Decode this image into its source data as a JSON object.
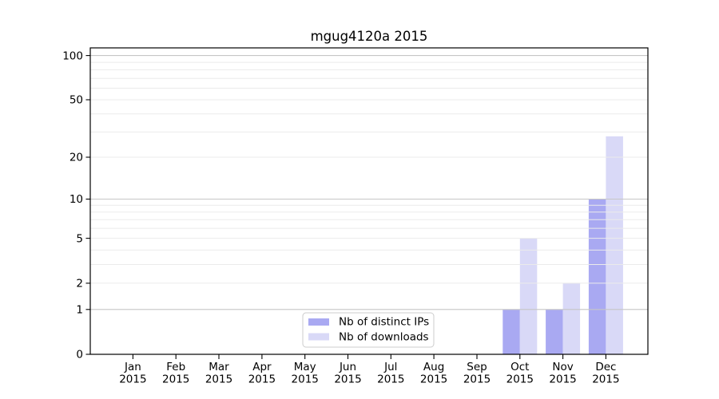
{
  "chart_data": {
    "type": "bar",
    "title": "mgug4120a 2015",
    "categories": [
      "Jan",
      "Feb",
      "Mar",
      "Apr",
      "May",
      "Jun",
      "Jul",
      "Aug",
      "Sep",
      "Oct",
      "Nov",
      "Dec"
    ],
    "x_year_line": "2015",
    "series": [
      {
        "name": "Nb of distinct IPs",
        "color": "#a9a9f2",
        "values": [
          0,
          0,
          0,
          0,
          0,
          0,
          0,
          0,
          0,
          1,
          1,
          10
        ]
      },
      {
        "name": "Nb of downloads",
        "color": "#d9d9f7",
        "values": [
          0,
          0,
          0,
          0,
          0,
          0,
          0,
          0,
          0,
          5,
          2,
          28
        ]
      }
    ],
    "xlabel": "",
    "ylabel": "",
    "y_scale": "log10(value+1)",
    "y_ticks": [
      0,
      1,
      2,
      5,
      10,
      20,
      50,
      100
    ],
    "ylim": [
      0,
      113
    ],
    "grid": {
      "on": true,
      "major_values": [
        1,
        10,
        100
      ],
      "minor_values": [
        2,
        3,
        4,
        5,
        6,
        7,
        8,
        9,
        20,
        30,
        40,
        50,
        60,
        70,
        80,
        90
      ],
      "major_color": "#c6c6c6",
      "minor_color": "#ebebeb"
    },
    "legend": {
      "position": "lower-center-inside",
      "entries": [
        "Nb of distinct IPs",
        "Nb of downloads"
      ]
    },
    "colors": {
      "axis": "#000000",
      "text": "#000000",
      "background": "#ffffff"
    }
  }
}
